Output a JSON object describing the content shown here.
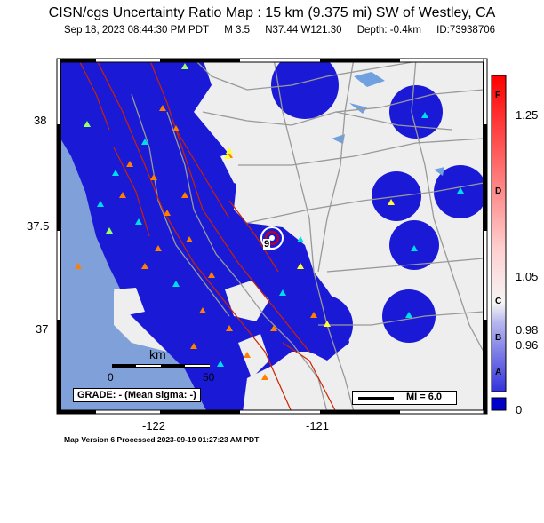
{
  "title": "CISN/cgs Uncertainty Ratio Map : 15  km (9.375 mi) SW of Westley, CA",
  "subtitle": {
    "datetime": "Sep 18, 2023 08:44:30 PM PDT",
    "magnitude": "M 3.5",
    "location": "N37.44 W121.30",
    "depth": "Depth: -0.4km",
    "event_id": "ID:73938706"
  },
  "axes": {
    "lat_ticks": [
      "38",
      "37.5",
      "37"
    ],
    "lon_ticks": [
      "-122",
      "-121"
    ]
  },
  "scale_bar": {
    "unit": "km",
    "ticks": [
      "0",
      "50"
    ]
  },
  "grade_box": "GRADE: - (Mean sigma: -)",
  "mi_legend": "MI = 6.0",
  "epicenter_label": "9",
  "colorbar": {
    "values": [
      "1.25",
      "1.05",
      "0.98",
      "0.96",
      "0"
    ],
    "grades": [
      "F",
      "D",
      "C",
      "B",
      "A"
    ],
    "colors": {
      "top": "#ff0000",
      "mid": "#f2f2f2",
      "bottom": "#0000cc"
    }
  },
  "footer": "Map Version 6 Processed 2023-09-19 01:27:23 AM PDT",
  "colors": {
    "ocean": "#7fa0d8",
    "land_low": "#eeeeee",
    "uncertainty_blue": "#1a1ad6",
    "faults": "#cc2200",
    "roads": "#999999"
  }
}
